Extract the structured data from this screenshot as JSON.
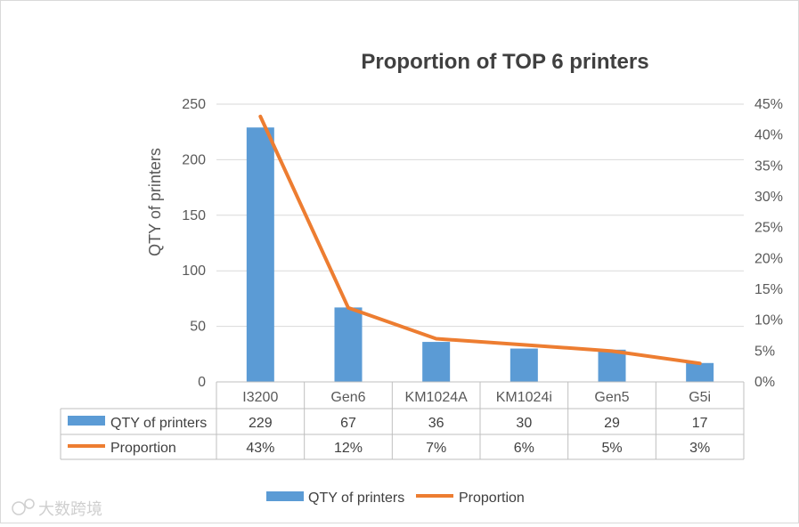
{
  "chart_data": {
    "type": "bar",
    "title": "Proportion of  TOP 6 printers",
    "categories": [
      "I3200",
      "Gen6",
      "KM1024A",
      "KM1024i",
      "Gen5",
      "G5i"
    ],
    "series": [
      {
        "name": "QTY of printers",
        "type": "bar",
        "axis": "left",
        "color": "#5b9bd5",
        "values": [
          229,
          67,
          36,
          30,
          29,
          17
        ],
        "labels": [
          "229",
          "67",
          "36",
          "30",
          "29",
          "17"
        ]
      },
      {
        "name": "Proportion",
        "type": "line",
        "axis": "right",
        "color": "#ed7d31",
        "values": [
          0.43,
          0.12,
          0.07,
          0.06,
          0.05,
          0.03
        ],
        "labels": [
          "43%",
          "12%",
          "7%",
          "6%",
          "5%",
          "3%"
        ]
      }
    ],
    "ylabel": "QTY of printers",
    "ylim": [
      0,
      250
    ],
    "yticks": [
      "0",
      "50",
      "100",
      "150",
      "200",
      "250"
    ],
    "y2lim": [
      0,
      0.45
    ],
    "y2ticks": [
      "0%",
      "5%",
      "10%",
      "15%",
      "20%",
      "25%",
      "30%",
      "35%",
      "40%",
      "45%"
    ],
    "grid": true,
    "legend_position": "bottom",
    "data_table": true
  },
  "watermark": "大数跨境"
}
